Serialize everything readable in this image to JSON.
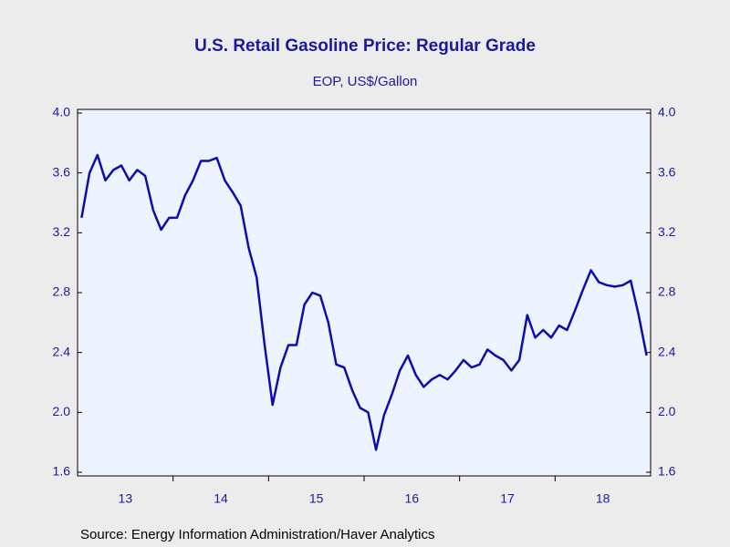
{
  "chart_data": {
    "type": "line",
    "title": "U.S. Retail Gasoline Price: Regular Grade",
    "subtitle": "EOP, US$/Gallon",
    "source": "Source:  Energy Information Administration/Haver Analytics",
    "categories": [
      null,
      null,
      null,
      null,
      null,
      "13",
      null,
      null,
      null,
      null,
      null,
      null,
      null,
      null,
      null,
      null,
      null,
      "14",
      null,
      null,
      null,
      null,
      null,
      null,
      null,
      null,
      null,
      null,
      null,
      "15",
      null,
      null,
      null,
      null,
      null,
      null,
      null,
      null,
      null,
      null,
      null,
      "16",
      null,
      null,
      null,
      null,
      null,
      null,
      null,
      null,
      null,
      null,
      null,
      "17",
      null,
      null,
      null,
      null,
      null,
      null,
      null,
      null,
      null,
      null,
      null,
      "18",
      null,
      null,
      null,
      null,
      null,
      null
    ],
    "series": [
      {
        "color": "#0c0cb0",
        "values": [
          3.3,
          3.6,
          3.72,
          3.55,
          3.62,
          3.65,
          3.55,
          3.62,
          3.58,
          3.35,
          3.22,
          3.3,
          3.3,
          3.45,
          3.55,
          3.68,
          3.68,
          3.7,
          3.55,
          3.47,
          3.38,
          3.1,
          2.9,
          2.45,
          2.05,
          2.3,
          2.45,
          2.45,
          2.72,
          2.8,
          2.78,
          2.6,
          2.32,
          2.3,
          2.15,
          2.03,
          2.0,
          1.75,
          1.98,
          2.12,
          2.28,
          2.38,
          2.25,
          2.17,
          2.22,
          2.25,
          2.22,
          2.28,
          2.35,
          2.3,
          2.32,
          2.42,
          2.38,
          2.35,
          2.28,
          2.35,
          2.65,
          2.5,
          2.55,
          2.5,
          2.58,
          2.55,
          2.68,
          2.82,
          2.95,
          2.87,
          2.85,
          2.84,
          2.85,
          2.88,
          2.65,
          2.38
        ]
      }
    ],
    "ylim": [
      1.6,
      4.0
    ],
    "yticks": [
      {
        "value": 1.6,
        "label": "1.6"
      },
      {
        "value": 2.0,
        "label": "2.0"
      },
      {
        "value": 2.4,
        "label": "2.4"
      },
      {
        "value": 2.8,
        "label": "2.8"
      },
      {
        "value": 3.2,
        "label": "3.2"
      },
      {
        "value": 3.6,
        "label": "3.6"
      },
      {
        "value": 4.0,
        "label": "4.0"
      }
    ]
  }
}
